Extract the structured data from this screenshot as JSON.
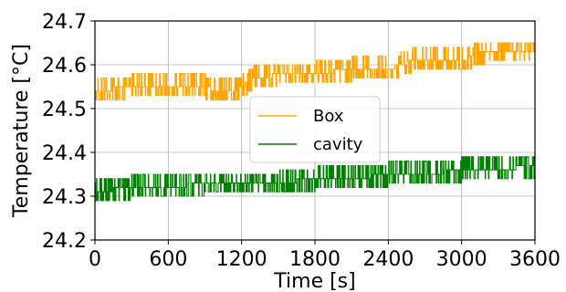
{
  "chart_data": {
    "type": "line",
    "title": "",
    "xlabel": "Time [s]",
    "ylabel": "Temperature [°C]",
    "xlim": [
      0,
      3600
    ],
    "ylim": [
      24.2,
      24.7
    ],
    "xticks": [
      0,
      600,
      1200,
      1800,
      2400,
      3000,
      3600
    ],
    "xtick_labels": [
      "0",
      "600",
      "1200",
      "1800",
      "2400",
      "3000",
      "3600"
    ],
    "yticks": [
      24.2,
      24.3,
      24.4,
      24.5,
      24.6,
      24.7
    ],
    "ytick_labels": [
      "24.2",
      "24.3",
      "24.4",
      "24.5",
      "24.6",
      "24.7"
    ],
    "grid": true,
    "legend_position": "center",
    "series": [
      {
        "name": "Box",
        "color": "#ffa500",
        "x": [
          0,
          300,
          600,
          900,
          1000,
          1150,
          1200,
          1300,
          1400,
          1500,
          1800,
          2100,
          2400,
          2500,
          2600,
          2700,
          2800,
          3000,
          3200,
          3300,
          3600
        ],
        "y": [
          24.54,
          24.55,
          24.55,
          24.55,
          24.54,
          24.54,
          24.55,
          24.57,
          24.57,
          24.58,
          24.58,
          24.59,
          24.59,
          24.6,
          24.61,
          24.61,
          24.61,
          24.61,
          24.63,
          24.63,
          24.63
        ],
        "noise": 0.025
      },
      {
        "name": "cavity",
        "color": "#008000",
        "x": [
          0,
          300,
          600,
          900,
          1200,
          1500,
          1800,
          2100,
          2400,
          2700,
          3000,
          3300,
          3600
        ],
        "y": [
          24.31,
          24.32,
          24.32,
          24.33,
          24.33,
          24.33,
          24.34,
          24.34,
          24.35,
          24.35,
          24.36,
          24.36,
          24.37
        ],
        "noise": 0.025
      }
    ]
  }
}
